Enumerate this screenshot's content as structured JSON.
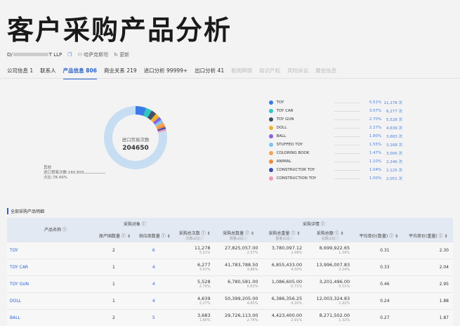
{
  "title": "客户采购产品分析",
  "company": {
    "name_start": "D/",
    "name_end": "T LLP",
    "copy_icon": "copy-icon",
    "contact": "哈萨克斯坦",
    "update": "更新"
  },
  "tabs": [
    {
      "label": "公司信息 1"
    },
    {
      "label": "联系人"
    },
    {
      "label": "产品信息 806",
      "active": true
    },
    {
      "label": "商业关系 219"
    },
    {
      "label": "进口分析 99999+"
    },
    {
      "label": "出口分析 41"
    },
    {
      "label": "新闻舆情",
      "disabled": true
    },
    {
      "label": "知识产权",
      "disabled": true
    },
    {
      "label": "风险诉讼",
      "disabled": true
    },
    {
      "label": "展会信息",
      "disabled": true
    }
  ],
  "chart_data": {
    "type": "pie",
    "donut": true,
    "center_label": "进口贸易次数",
    "center_value": "204650",
    "others": {
      "label": "其他",
      "count_label": "进口贸易次数:160,655",
      "pct_label": "占比:78.49%",
      "value": 160655,
      "pct": 78.49,
      "color": "#c7ddf2"
    },
    "slices": [
      {
        "name": "TOY",
        "pct": "5.51%",
        "count": "11,278 次",
        "value": 11278,
        "color": "#3b7be8"
      },
      {
        "name": "TOY CAR",
        "pct": "3.07%",
        "count": "6,277 次",
        "value": 6277,
        "color": "#2fc7c0"
      },
      {
        "name": "TOY GUN",
        "pct": "2.70%",
        "count": "5,528 次",
        "value": 5528,
        "color": "#44506a"
      },
      {
        "name": "DOLL",
        "pct": "2.27%",
        "count": "4,639 次",
        "value": 4639,
        "color": "#f0b429"
      },
      {
        "name": "BALL",
        "pct": "1.80%",
        "count": "3,683 次",
        "value": 3683,
        "color": "#8a63e0"
      },
      {
        "name": "STUFFED TOY",
        "pct": "1.55%",
        "count": "3,168 次",
        "value": 3168,
        "color": "#7cc8ef"
      },
      {
        "name": "COLORING BOOK",
        "pct": "1.47%",
        "count": "3,000 次",
        "value": 3000,
        "color": "#f2a65a"
      },
      {
        "name": "ANIMAL",
        "pct": "1.10%",
        "count": "2,246 次",
        "value": 2246,
        "color": "#f08a3c"
      },
      {
        "name": "CONSTRUCTOR TOY",
        "pct": "1.04%",
        "count": "2,125 次",
        "value": 2125,
        "color": "#3f4fb5"
      },
      {
        "name": "CONSTRUCTION TOY",
        "pct": "1.00%",
        "count": "2,051 次",
        "value": 2051,
        "color": "#ef9ab8"
      }
    ]
  },
  "section_title": "全部采购产品明细",
  "table": {
    "group1": "采购对象 ⓘ",
    "group2": "采购详情 ⓘ",
    "headers": [
      "产品名称 ⓘ",
      "原产国数量 ⓘ ⇕",
      "供应商数量 ⓘ ⇕",
      "采购总次数 ⓘ ⇕",
      "采购总数量 ⓘ ⇕",
      "采购总重量 ⓘ ⇕",
      "采购总额 ⓘ ⇕",
      "平均单价(数量) ⓘ ⇕",
      "平均单价(重量) ⓘ ⇕"
    ],
    "subheaders": [
      "",
      "",
      "",
      "次数占比ⓘ",
      "数量占比ⓘ",
      "重量占比ⓘ",
      "总额占比ⓘ",
      "",
      ""
    ],
    "rows": [
      {
        "name": "TOY",
        "countries": "2",
        "suppliers": "6",
        "times": "11,278",
        "times_pct": "5.51%",
        "qty": "27,825,057.00",
        "qty_pct": "2.57%",
        "weight": "3,780,097.12",
        "weight_pct": "2.48%",
        "amount": "8,699,922.65",
        "amount_pct": "1.39%",
        "avg_qty": "0.31",
        "avg_weight": "2.30"
      },
      {
        "name": "TOY CAR",
        "countries": "1",
        "suppliers": "4",
        "times": "6,277",
        "times_pct": "3.07%",
        "qty": "41,783,788.50",
        "qty_pct": "3.86%",
        "weight": "6,855,433.00",
        "weight_pct": "4.50%",
        "amount": "13,996,007.83",
        "amount_pct": "2.24%",
        "avg_qty": "0.33",
        "avg_weight": "2.04"
      },
      {
        "name": "TOY GUN",
        "countries": "1",
        "suppliers": "4",
        "times": "5,528",
        "times_pct": "2.70%",
        "qty": "6,780,581.00",
        "qty_pct": "0.63%",
        "weight": "1,086,605.00",
        "weight_pct": "0.71%",
        "amount": "3,201,496.00",
        "amount_pct": "0.51%",
        "avg_qty": "0.46",
        "avg_weight": "2.95"
      },
      {
        "name": "DOLL",
        "countries": "1",
        "suppliers": "4",
        "times": "4,639",
        "times_pct": "2.27%",
        "qty": "50,399,205.00",
        "qty_pct": "4.65%",
        "weight": "6,386,356.25",
        "weight_pct": "4.20%",
        "amount": "12,003,324.83",
        "amount_pct": "1.92%",
        "avg_qty": "0.24",
        "avg_weight": "1.88"
      },
      {
        "name": "BALL",
        "countries": "2",
        "suppliers": "5",
        "times": "3,683",
        "times_pct": "1.80%",
        "qty": "29,726,113.00",
        "qty_pct": "2.74%",
        "weight": "4,423,400.00",
        "weight_pct": "2.91%",
        "amount": "8,271,502.00",
        "amount_pct": "1.32%",
        "avg_qty": "0.27",
        "avg_weight": "1.87"
      }
    ]
  }
}
